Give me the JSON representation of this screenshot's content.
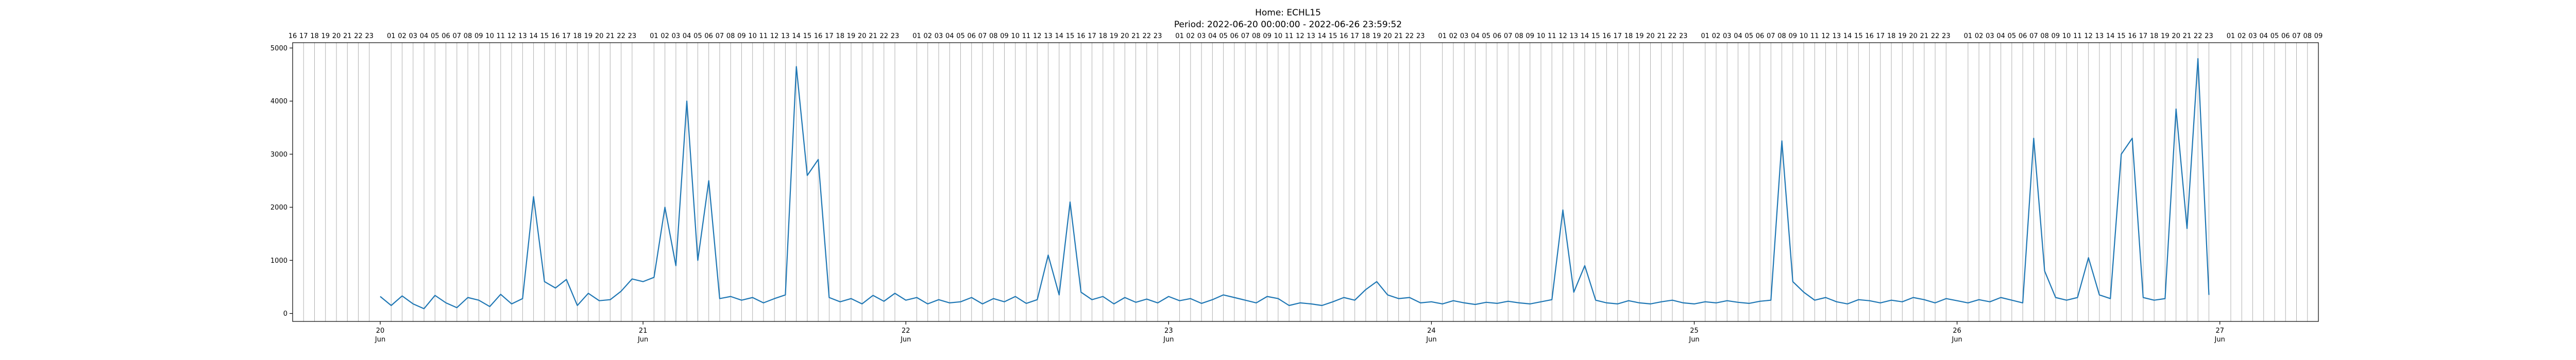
{
  "chart_data": {
    "type": "line",
    "title": "Home: ECHL15",
    "subtitle": "Period: 2022-06-20 00:00:00 - 2022-06-26 23:59:52",
    "xlabel": "",
    "ylabel": "",
    "x_range_days": [
      "2022-06-19 16:00",
      "2022-06-27 09:00"
    ],
    "ylim": [
      -150,
      5100
    ],
    "y_ticks": [
      0,
      1000,
      2000,
      3000,
      4000,
      5000
    ],
    "x_day_ticks": [
      {
        "day": "20",
        "month": "Jun",
        "date": "2022-06-20"
      },
      {
        "day": "21",
        "month": "Jun",
        "date": "2022-06-21"
      },
      {
        "day": "22",
        "month": "Jun",
        "date": "2022-06-22"
      },
      {
        "day": "23",
        "month": "Jun",
        "date": "2022-06-23"
      },
      {
        "day": "24",
        "month": "Jun",
        "date": "2022-06-24"
      },
      {
        "day": "25",
        "month": "Jun",
        "date": "2022-06-25"
      },
      {
        "day": "26",
        "month": "Jun",
        "date": "2022-06-26"
      },
      {
        "day": "27",
        "month": "Jun",
        "date": "2022-06-27"
      }
    ],
    "hour_labels_top": true,
    "grid": "vertical hour lines",
    "series": [
      {
        "color": "#1f77b4",
        "points": [
          [
            "2022-06-20 00:00",
            320
          ],
          [
            "2022-06-20 01:00",
            150
          ],
          [
            "2022-06-20 02:00",
            330
          ],
          [
            "2022-06-20 03:00",
            180
          ],
          [
            "2022-06-20 04:00",
            90
          ],
          [
            "2022-06-20 05:00",
            340
          ],
          [
            "2022-06-20 06:00",
            200
          ],
          [
            "2022-06-20 07:00",
            110
          ],
          [
            "2022-06-20 08:00",
            300
          ],
          [
            "2022-06-20 09:00",
            250
          ],
          [
            "2022-06-20 10:00",
            130
          ],
          [
            "2022-06-20 11:00",
            360
          ],
          [
            "2022-06-20 12:00",
            180
          ],
          [
            "2022-06-20 13:00",
            280
          ],
          [
            "2022-06-20 14:00",
            2200
          ],
          [
            "2022-06-20 15:00",
            600
          ],
          [
            "2022-06-20 16:00",
            480
          ],
          [
            "2022-06-20 17:00",
            640
          ],
          [
            "2022-06-20 18:00",
            150
          ],
          [
            "2022-06-20 19:00",
            380
          ],
          [
            "2022-06-20 20:00",
            240
          ],
          [
            "2022-06-20 21:00",
            260
          ],
          [
            "2022-06-20 22:00",
            420
          ],
          [
            "2022-06-20 23:00",
            650
          ],
          [
            "2022-06-21 00:00",
            600
          ],
          [
            "2022-06-21 01:00",
            680
          ],
          [
            "2022-06-21 02:00",
            2000
          ],
          [
            "2022-06-21 03:00",
            900
          ],
          [
            "2022-06-21 04:00",
            4000
          ],
          [
            "2022-06-21 05:00",
            1000
          ],
          [
            "2022-06-21 06:00",
            2500
          ],
          [
            "2022-06-21 07:00",
            280
          ],
          [
            "2022-06-21 08:00",
            320
          ],
          [
            "2022-06-21 09:00",
            250
          ],
          [
            "2022-06-21 10:00",
            300
          ],
          [
            "2022-06-21 11:00",
            200
          ],
          [
            "2022-06-21 12:00",
            280
          ],
          [
            "2022-06-21 13:00",
            350
          ],
          [
            "2022-06-21 14:00",
            4650
          ],
          [
            "2022-06-21 15:00",
            2600
          ],
          [
            "2022-06-21 16:00",
            2900
          ],
          [
            "2022-06-21 17:00",
            300
          ],
          [
            "2022-06-21 18:00",
            220
          ],
          [
            "2022-06-21 19:00",
            280
          ],
          [
            "2022-06-21 20:00",
            180
          ],
          [
            "2022-06-21 21:00",
            340
          ],
          [
            "2022-06-21 22:00",
            230
          ],
          [
            "2022-06-21 23:00",
            380
          ],
          [
            "2022-06-22 00:00",
            250
          ],
          [
            "2022-06-22 01:00",
            300
          ],
          [
            "2022-06-22 02:00",
            180
          ],
          [
            "2022-06-22 03:00",
            260
          ],
          [
            "2022-06-22 04:00",
            200
          ],
          [
            "2022-06-22 05:00",
            220
          ],
          [
            "2022-06-22 06:00",
            300
          ],
          [
            "2022-06-22 07:00",
            180
          ],
          [
            "2022-06-22 08:00",
            280
          ],
          [
            "2022-06-22 09:00",
            220
          ],
          [
            "2022-06-22 10:00",
            320
          ],
          [
            "2022-06-22 11:00",
            190
          ],
          [
            "2022-06-22 12:00",
            260
          ],
          [
            "2022-06-22 13:00",
            1100
          ],
          [
            "2022-06-22 14:00",
            350
          ],
          [
            "2022-06-22 15:00",
            2100
          ],
          [
            "2022-06-22 16:00",
            400
          ],
          [
            "2022-06-22 17:00",
            260
          ],
          [
            "2022-06-22 18:00",
            320
          ],
          [
            "2022-06-22 19:00",
            180
          ],
          [
            "2022-06-22 20:00",
            300
          ],
          [
            "2022-06-22 21:00",
            210
          ],
          [
            "2022-06-22 22:00",
            270
          ],
          [
            "2022-06-22 23:00",
            200
          ],
          [
            "2022-06-23 00:00",
            320
          ],
          [
            "2022-06-23 01:00",
            240
          ],
          [
            "2022-06-23 02:00",
            280
          ],
          [
            "2022-06-23 03:00",
            190
          ],
          [
            "2022-06-23 04:00",
            260
          ],
          [
            "2022-06-23 05:00",
            350
          ],
          [
            "2022-06-23 06:00",
            300
          ],
          [
            "2022-06-23 07:00",
            250
          ],
          [
            "2022-06-23 08:00",
            200
          ],
          [
            "2022-06-23 09:00",
            320
          ],
          [
            "2022-06-23 10:00",
            280
          ],
          [
            "2022-06-23 11:00",
            150
          ],
          [
            "2022-06-23 12:00",
            200
          ],
          [
            "2022-06-23 13:00",
            180
          ],
          [
            "2022-06-23 14:00",
            150
          ],
          [
            "2022-06-23 15:00",
            220
          ],
          [
            "2022-06-23 16:00",
            300
          ],
          [
            "2022-06-23 17:00",
            250
          ],
          [
            "2022-06-23 18:00",
            450
          ],
          [
            "2022-06-23 19:00",
            600
          ],
          [
            "2022-06-23 20:00",
            350
          ],
          [
            "2022-06-23 21:00",
            280
          ],
          [
            "2022-06-23 22:00",
            300
          ],
          [
            "2022-06-23 23:00",
            200
          ],
          [
            "2022-06-24 00:00",
            220
          ],
          [
            "2022-06-24 01:00",
            180
          ],
          [
            "2022-06-24 02:00",
            240
          ],
          [
            "2022-06-24 03:00",
            200
          ],
          [
            "2022-06-24 04:00",
            170
          ],
          [
            "2022-06-24 05:00",
            210
          ],
          [
            "2022-06-24 06:00",
            190
          ],
          [
            "2022-06-24 07:00",
            230
          ],
          [
            "2022-06-24 08:00",
            200
          ],
          [
            "2022-06-24 09:00",
            180
          ],
          [
            "2022-06-24 10:00",
            220
          ],
          [
            "2022-06-24 11:00",
            260
          ],
          [
            "2022-06-24 12:00",
            1950
          ],
          [
            "2022-06-24 13:00",
            400
          ],
          [
            "2022-06-24 14:00",
            900
          ],
          [
            "2022-06-24 15:00",
            250
          ],
          [
            "2022-06-24 16:00",
            200
          ],
          [
            "2022-06-24 17:00",
            180
          ],
          [
            "2022-06-24 18:00",
            240
          ],
          [
            "2022-06-24 19:00",
            200
          ],
          [
            "2022-06-24 20:00",
            180
          ],
          [
            "2022-06-24 21:00",
            220
          ],
          [
            "2022-06-24 22:00",
            250
          ],
          [
            "2022-06-24 23:00",
            200
          ],
          [
            "2022-06-25 00:00",
            180
          ],
          [
            "2022-06-25 01:00",
            220
          ],
          [
            "2022-06-25 02:00",
            200
          ],
          [
            "2022-06-25 03:00",
            240
          ],
          [
            "2022-06-25 04:00",
            210
          ],
          [
            "2022-06-25 05:00",
            190
          ],
          [
            "2022-06-25 06:00",
            230
          ],
          [
            "2022-06-25 07:00",
            250
          ],
          [
            "2022-06-25 08:00",
            3250
          ],
          [
            "2022-06-25 09:00",
            600
          ],
          [
            "2022-06-25 10:00",
            400
          ],
          [
            "2022-06-25 11:00",
            250
          ],
          [
            "2022-06-25 12:00",
            300
          ],
          [
            "2022-06-25 13:00",
            220
          ],
          [
            "2022-06-25 14:00",
            180
          ],
          [
            "2022-06-25 15:00",
            260
          ],
          [
            "2022-06-25 16:00",
            240
          ],
          [
            "2022-06-25 17:00",
            200
          ],
          [
            "2022-06-25 18:00",
            250
          ],
          [
            "2022-06-25 19:00",
            220
          ],
          [
            "2022-06-25 20:00",
            300
          ],
          [
            "2022-06-25 21:00",
            260
          ],
          [
            "2022-06-25 22:00",
            200
          ],
          [
            "2022-06-25 23:00",
            280
          ],
          [
            "2022-06-26 00:00",
            240
          ],
          [
            "2022-06-26 01:00",
            200
          ],
          [
            "2022-06-26 02:00",
            260
          ],
          [
            "2022-06-26 03:00",
            220
          ],
          [
            "2022-06-26 04:00",
            300
          ],
          [
            "2022-06-26 05:00",
            250
          ],
          [
            "2022-06-26 06:00",
            200
          ],
          [
            "2022-06-26 07:00",
            3300
          ],
          [
            "2022-06-26 08:00",
            800
          ],
          [
            "2022-06-26 09:00",
            300
          ],
          [
            "2022-06-26 10:00",
            250
          ],
          [
            "2022-06-26 11:00",
            300
          ],
          [
            "2022-06-26 12:00",
            1050
          ],
          [
            "2022-06-26 13:00",
            350
          ],
          [
            "2022-06-26 14:00",
            280
          ],
          [
            "2022-06-26 15:00",
            3000
          ],
          [
            "2022-06-26 16:00",
            3300
          ],
          [
            "2022-06-26 17:00",
            300
          ],
          [
            "2022-06-26 18:00",
            250
          ],
          [
            "2022-06-26 19:00",
            280
          ],
          [
            "2022-06-26 20:00",
            3850
          ],
          [
            "2022-06-26 21:00",
            1600
          ],
          [
            "2022-06-26 22:00",
            4800
          ],
          [
            "2022-06-26 23:00",
            350
          ]
        ]
      }
    ]
  }
}
